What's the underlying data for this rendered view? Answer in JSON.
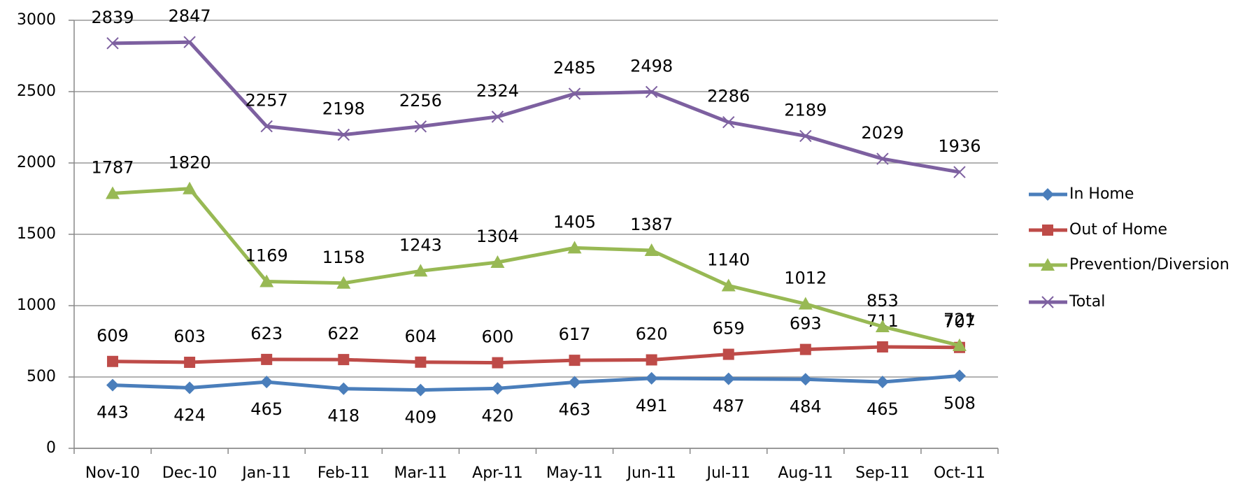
{
  "chart_data": {
    "type": "line",
    "categories": [
      "Nov-10",
      "Dec-10",
      "Jan-11",
      "Feb-11",
      "Mar-11",
      "Apr-11",
      "May-11",
      "Jun-11",
      "Jul-11",
      "Aug-11",
      "Sep-11",
      "Oct-11"
    ],
    "series": [
      {
        "name": "In Home",
        "color": "#4a7ebb",
        "marker": "diamond",
        "values": [
          443,
          424,
          465,
          418,
          409,
          420,
          463,
          491,
          487,
          484,
          465,
          508
        ]
      },
      {
        "name": "Out of Home",
        "color": "#be4b48",
        "marker": "square",
        "values": [
          609,
          603,
          623,
          622,
          604,
          600,
          617,
          620,
          659,
          693,
          711,
          707
        ]
      },
      {
        "name": "Prevention/Diversion",
        "color": "#98b954",
        "marker": "triangle",
        "values": [
          1787,
          1820,
          1169,
          1158,
          1243,
          1304,
          1405,
          1387,
          1140,
          1012,
          853,
          721
        ]
      },
      {
        "name": "Total",
        "color": "#7d60a0",
        "marker": "x",
        "values": [
          2839,
          2847,
          2257,
          2198,
          2256,
          2324,
          2485,
          2498,
          2286,
          2189,
          2029,
          1936
        ]
      }
    ],
    "ylim": [
      0,
      3000
    ],
    "yticks": [
      0,
      500,
      1000,
      1500,
      2000,
      2500,
      3000
    ],
    "grid": true,
    "legend": "right"
  }
}
